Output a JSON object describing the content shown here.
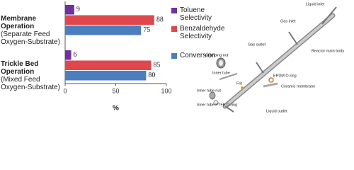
{
  "chart_data": {
    "type": "bar",
    "orientation": "horizontal",
    "categories": [
      "Membrane Operation",
      "Trickle Bed Operation"
    ],
    "category_notes": [
      "(Separate Feed Oxygen-Substrate)",
      "(Mixed Feed Oxygen-Substrate)"
    ],
    "series": [
      {
        "name": "Toluene Selectivity",
        "color": "#7030a0",
        "values": [
          9,
          6
        ]
      },
      {
        "name": "Benzaldehyde Selectivity",
        "color": "#e0474c",
        "values": [
          88,
          85
        ]
      },
      {
        "name": "Conversion",
        "color": "#4a7ebf",
        "values": [
          75,
          80
        ]
      }
    ],
    "xlim": [
      0,
      100
    ],
    "xticks": [
      0,
      50,
      100
    ],
    "x_label": "%",
    "legend": "right"
  },
  "diagram": {
    "labels": [
      "Liquid inlet",
      "Gas inlet",
      "Gas outlet",
      "Reactor main body",
      "Clamping nut",
      "EPDM O-ring",
      "Inner tube",
      "Ceramic membrane",
      "Frit",
      "Inner tube nut",
      "Inner tube PTFE O-ring",
      "Liquid outlet"
    ]
  }
}
